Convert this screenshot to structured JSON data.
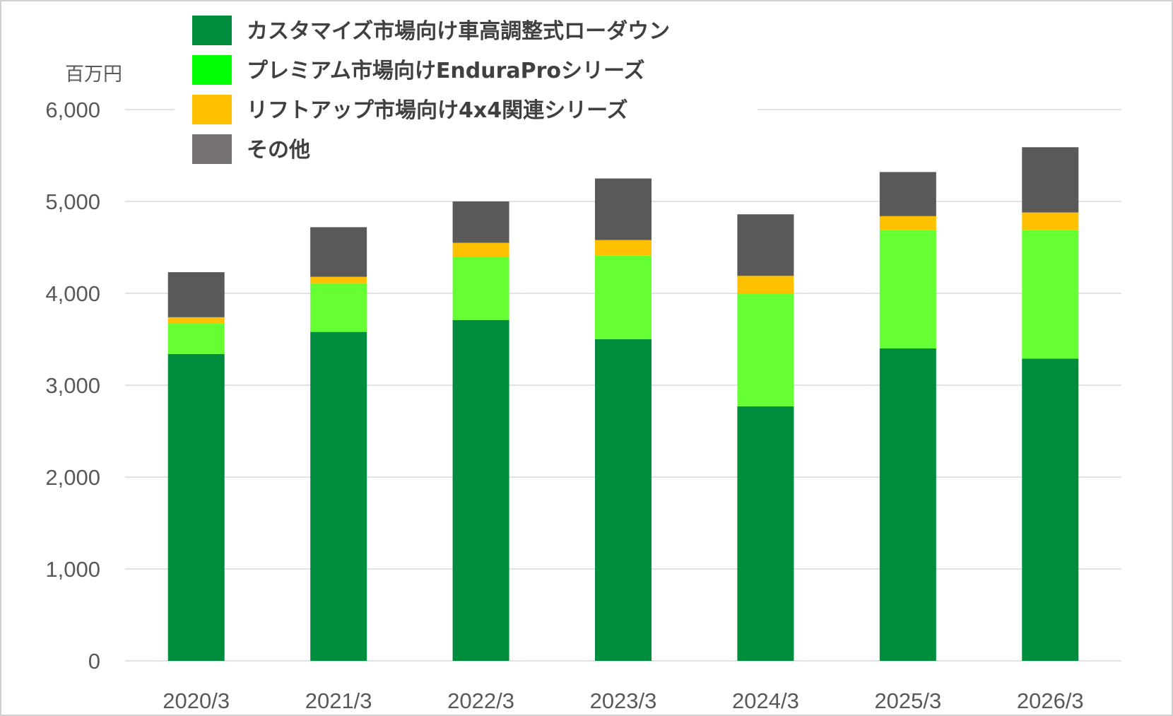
{
  "chart_data": {
    "type": "bar",
    "stacked": true,
    "y_unit": "百万円",
    "categories": [
      "2020/3",
      "2021/3",
      "2022/3",
      "2023/3",
      "2024/3",
      "2025/3",
      "2026/3"
    ],
    "y_ticks": [
      "0",
      "1,000",
      "2,000",
      "3,000",
      "4,000",
      "5,000",
      "6,000"
    ],
    "ylim": [
      0,
      6000
    ],
    "grid": true,
    "legend_position": "top",
    "series": [
      {
        "name": "カスタマイズ市場向け車高調整式ローダウン",
        "legend_color": "#008e3e",
        "bar_color": "#008e3e",
        "values": [
          3340,
          3580,
          3710,
          3500,
          2770,
          3400,
          3290
        ]
      },
      {
        "name": "プレミアム市場向けEnduraProシリーズ",
        "legend_color": "#00ff00",
        "bar_color": "#66ff33",
        "values": [
          330,
          530,
          690,
          910,
          1230,
          1290,
          1400
        ]
      },
      {
        "name": "リフトアップ市場向け4x4関連シリーズ",
        "legend_color": "#ffc000",
        "bar_color": "#ffc000",
        "values": [
          70,
          70,
          150,
          170,
          190,
          150,
          190
        ]
      },
      {
        "name": "その他",
        "legend_color": "#767171",
        "bar_color": "#595959",
        "values": [
          490,
          540,
          450,
          670,
          670,
          480,
          710
        ]
      }
    ]
  }
}
